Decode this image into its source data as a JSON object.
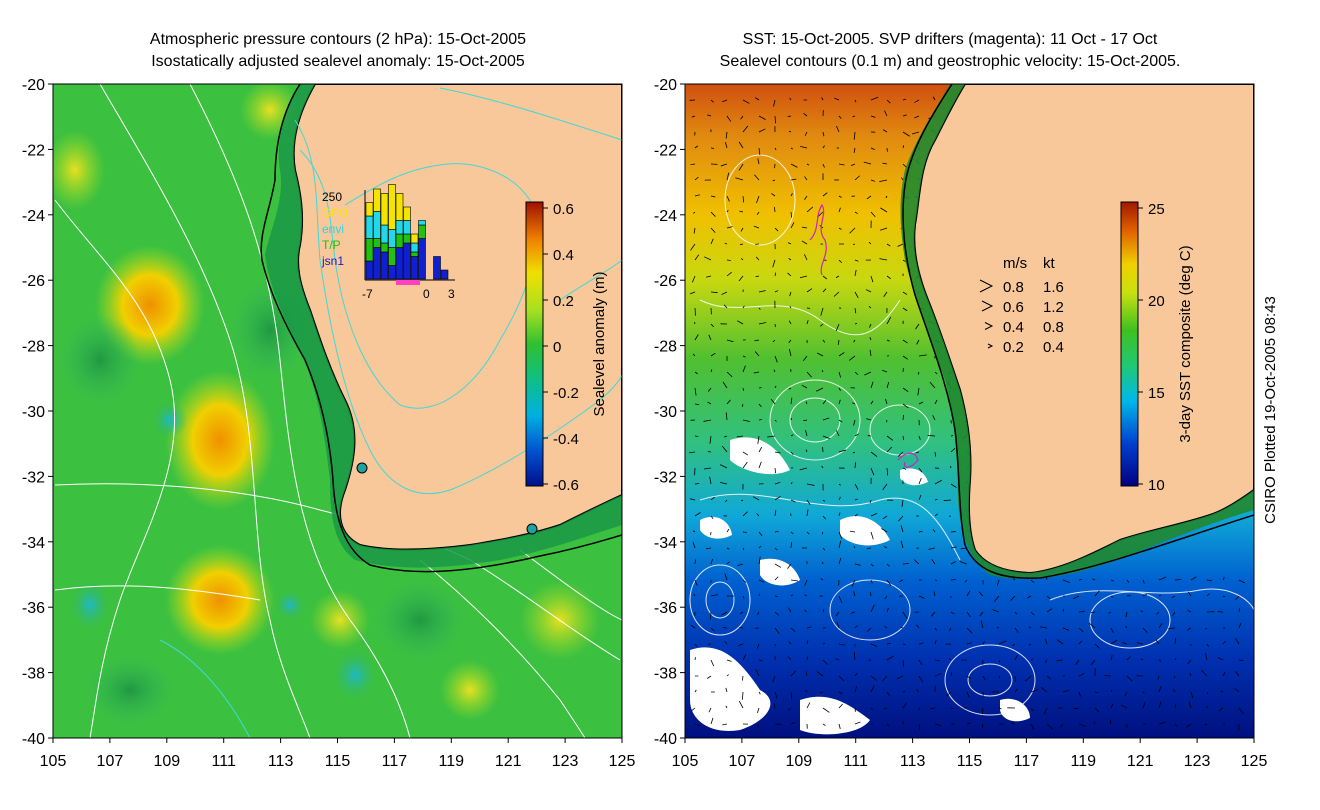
{
  "left_panel": {
    "title_line1": "Atmospheric pressure contours (2 hPa): 15-Oct-2005",
    "title_line2": "Isostatically adjusted sealevel anomaly: 15-Oct-2005",
    "colorbar": {
      "label": "Sealevel anomaly (m)",
      "ticks": [
        "0.6",
        "0.4",
        "0.2",
        "0",
        "-0.2",
        "-0.4",
        "-0.6"
      ]
    },
    "inset": {
      "top_value": "250",
      "legend": [
        {
          "label": "GFO",
          "color": "#f5e400"
        },
        {
          "label": "envi",
          "color": "#20d8e8"
        },
        {
          "label": "T/P",
          "color": "#22c010"
        },
        {
          "label": "jsn1",
          "color": "#1020d0"
        }
      ],
      "xticks": [
        "-7",
        "0",
        "3"
      ],
      "bars": [
        {
          "jsn1": 0.2,
          "tp": 0.25,
          "envi": 0.25,
          "gfo": 0.15
        },
        {
          "jsn1": 0.35,
          "tp": 0.1,
          "envi": 0.3,
          "gfo": 0.25
        },
        {
          "jsn1": 0.3,
          "tp": 0.1,
          "envi": 0.2,
          "gfo": 0.35
        },
        {
          "jsn1": 0.15,
          "tp": 0.2,
          "envi": 0.2,
          "gfo": 0.5
        },
        {
          "jsn1": 0.35,
          "tp": 0.15,
          "envi": 0.15,
          "gfo": 0.3
        },
        {
          "jsn1": 0.4,
          "tp": 0.1,
          "envi": 0.15,
          "gfo": 0.15
        },
        {
          "jsn1": 0.25,
          "tp": 0.05,
          "envi": 0.1,
          "gfo": 0.1
        },
        {
          "jsn1": 0.45,
          "tp": 0.15,
          "envi": 0.05,
          "gfo": 0.0
        },
        {
          "jsn1": 0.0,
          "tp": 0.0,
          "envi": 0.0,
          "gfo": 0.0
        },
        {
          "jsn1": 0.25,
          "tp": 0.0,
          "envi": 0.0,
          "gfo": 0.0
        },
        {
          "jsn1": 0.1,
          "tp": 0.0,
          "envi": 0.0,
          "gfo": 0.0
        }
      ]
    }
  },
  "right_panel": {
    "title_line1": "SST: 15-Oct-2005. SVP drifters (magenta): 11 Oct - 17 Oct",
    "title_line2": "Sealevel contours (0.1 m) and geostrophic velocity: 15-Oct-2005.",
    "colorbar": {
      "label": "3-day SST composite (deg C)",
      "ticks": [
        "25",
        "20",
        "15",
        "10"
      ]
    },
    "velocity_legend": {
      "header_ms": "m/s",
      "header_kt": "kt",
      "rows": [
        {
          "ms": "0.8",
          "kt": "1.6"
        },
        {
          "ms": "0.6",
          "kt": "1.2"
        },
        {
          "ms": "0.4",
          "kt": "0.8"
        },
        {
          "ms": "0.2",
          "kt": "0.4"
        }
      ]
    }
  },
  "axes": {
    "y_ticks": [
      "-20",
      "-22",
      "-24",
      "-26",
      "-28",
      "-30",
      "-32",
      "-34",
      "-36",
      "-38",
      "-40"
    ],
    "x_ticks": [
      "105",
      "107",
      "109",
      "111",
      "113",
      "115",
      "117",
      "119",
      "121",
      "123",
      "125"
    ]
  },
  "credit": "CSIRO Plotted 19-Oct-2005 08:43",
  "colors": {
    "land": "#f8c89a",
    "ocean_green": "#3cc83c",
    "coast": "#000000",
    "contour_white": "#ffffff",
    "contour_cyan": "#40d8d8"
  }
}
